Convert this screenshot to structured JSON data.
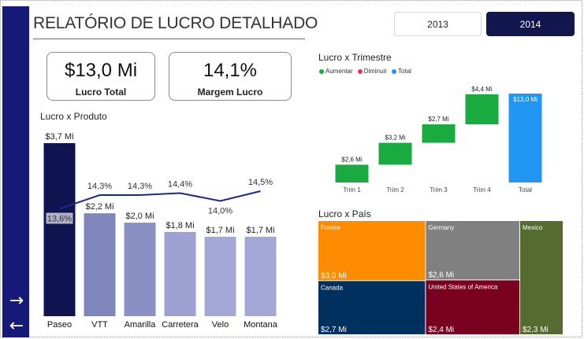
{
  "page": {
    "title": "RELATÓRIO DE LUCRO DETALHADO",
    "years": [
      {
        "label": "2013",
        "selected": false
      },
      {
        "label": "2014",
        "selected": true
      }
    ],
    "nav": {
      "next": "→",
      "back": "←"
    }
  },
  "kpis": [
    {
      "value": "$13,0 Mi",
      "label": "Lucro Total"
    },
    {
      "value": "14,1%",
      "label": "Margem Lucro"
    }
  ],
  "colors": {
    "sidebar": "#151a78",
    "increase": "#1aab40",
    "decrease": "#e8384f",
    "total": "#2196f3",
    "line": "#1a2a8c"
  },
  "chart_data": [
    {
      "type": "bar",
      "title": "Lucro x Produto",
      "categories": [
        "Paseo",
        "VTT",
        "Amarilla",
        "Carretera",
        "Velo",
        "Montana"
      ],
      "series": [
        {
          "values": [
            3.7,
            2.2,
            2.0,
            1.8,
            1.7,
            1.7
          ],
          "labels": [
            "$3,7 Mi",
            "$2,2 Mi",
            "$2,0 Mi",
            "$1,8 Mi",
            "$1,7 Mi",
            "$1,7 Mi"
          ],
          "colors": [
            "#0f1450",
            "#7f86bb",
            "#8a90c4",
            "#9ca1d1",
            "#a3a8d6",
            "#a3a8d6"
          ]
        },
        {
          "values": [
            13.6,
            14.3,
            14.3,
            14.4,
            14.0,
            14.5
          ],
          "labels": [
            "13,6%",
            "14,3%",
            "14,3%",
            "14,4%",
            "14,0%",
            "14,5%"
          ],
          "type": "line"
        }
      ],
      "ylim": [
        0,
        3.7
      ],
      "line_ylim": [
        12.5,
        14.9
      ]
    },
    {
      "type": "bar",
      "subtype": "waterfall",
      "title": "Lucro x Trimestre",
      "legend": [
        "Aumentar",
        "Diminuir",
        "Total"
      ],
      "categories": [
        "Trim 1",
        "Trim 2",
        "Trim 3",
        "Trim 4",
        "Total"
      ],
      "values": [
        2.6,
        3.2,
        2.7,
        4.4,
        13.0
      ],
      "labels": [
        "$2,6 Mi",
        "$3,2 Mi",
        "$2,7 Mi",
        "$4,4 Mi",
        "$13,0 Mi"
      ],
      "ylim": [
        0,
        13.8
      ]
    },
    {
      "type": "heatmap",
      "subtype": "treemap",
      "title": "Lucro x País",
      "items": [
        {
          "name": "France",
          "value": 3.0,
          "label": "$3,0 Mi",
          "color": "#ff8c00"
        },
        {
          "name": "Germany",
          "value": 2.6,
          "label": "$2,6 Mi",
          "color": "#808080"
        },
        {
          "name": "Mexico",
          "value": 2.3,
          "label": "$2,3 Mi",
          "color": "#556b2f"
        },
        {
          "name": "Canada",
          "value": 2.7,
          "label": "$2,7 Mi",
          "color": "#00305e"
        },
        {
          "name": "United States of America",
          "value": 2.4,
          "label": "$2,4 Mi",
          "color": "#7a0020"
        }
      ]
    }
  ]
}
